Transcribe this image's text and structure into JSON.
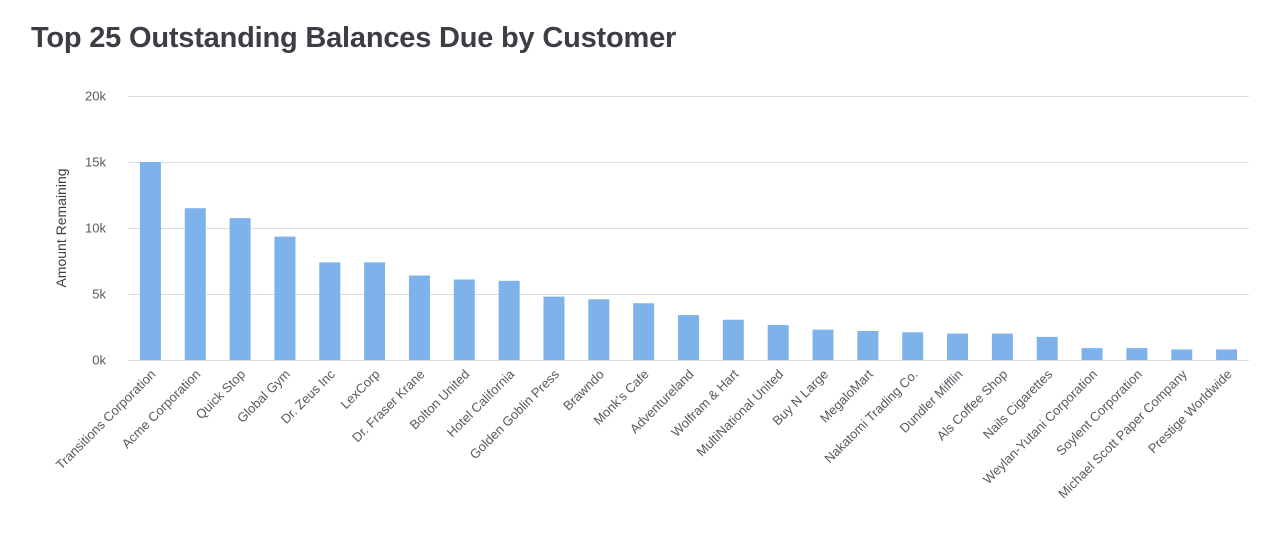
{
  "chart_data": {
    "type": "bar",
    "title": "Top 25 Outstanding Balances Due by Customer",
    "xlabel": "",
    "ylabel": "Amount Remaining",
    "ylim": [
      0,
      20000
    ],
    "yticks": [
      0,
      5000,
      10000,
      15000,
      20000
    ],
    "ytick_labels": [
      "0k",
      "5k",
      "10k",
      "15k",
      "20k"
    ],
    "grid": true,
    "legend": "none",
    "bar_color": "#7db3ea",
    "categories": [
      "Transitions Corporation",
      "Acme Corporation",
      "Quick Stop",
      "Global Gym",
      "Dr. Zeus Inc",
      "LexCorp",
      "Dr. Fraser Krane",
      "Bolton United",
      "Hotel California",
      "Golden Goblin Press",
      "Brawndo",
      "Monk's Cafe",
      "Adventureland",
      "Wolfram & Hart",
      "MultiNational United",
      "Buy N Large",
      "MegaloMart",
      "Nakatomi Trading Co.",
      "Dundler Mifflin",
      "Als Coffee Shop",
      "Nails Cigarettes",
      "Weylan-Yutani Corporation",
      "Soylent Corporation",
      "Michael Scott Paper Company",
      "Prestige Worldwide"
    ],
    "values": [
      15000,
      11500,
      10750,
      9350,
      7400,
      7400,
      6400,
      6100,
      6000,
      4800,
      4600,
      4300,
      3400,
      3050,
      2650,
      2300,
      2200,
      2100,
      2000,
      2000,
      1750,
      900,
      900,
      800,
      800
    ]
  }
}
